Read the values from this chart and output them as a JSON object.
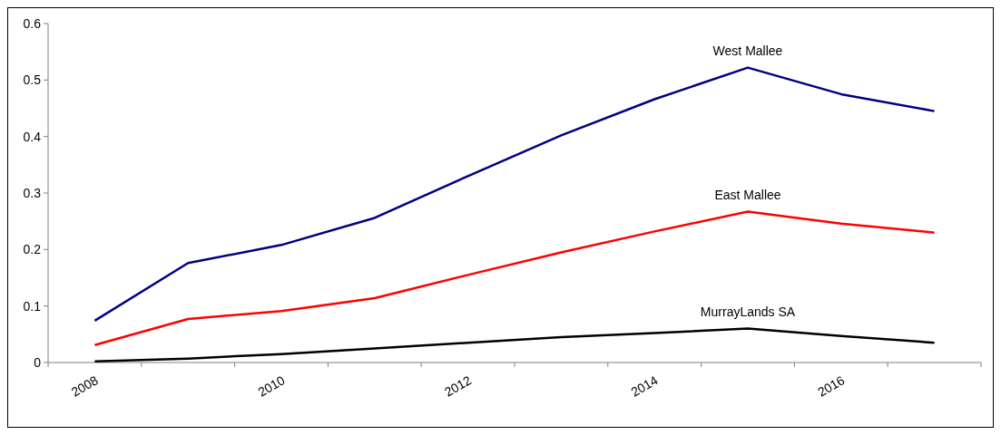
{
  "chart_data": {
    "type": "line",
    "categories": [
      "2008",
      null,
      "2010",
      null,
      "2012",
      null,
      "2014",
      null,
      "2016",
      null
    ],
    "series": [
      {
        "name": "West Mallee",
        "color": "#000080",
        "values": [
          0.074,
          0.176,
          0.208,
          0.256,
          0.33,
          0.402,
          0.466,
          0.522,
          0.475,
          0.445
        ]
      },
      {
        "name": "East Mallee",
        "color": "#ff0000",
        "values": [
          0.031,
          0.077,
          0.091,
          0.114,
          0.155,
          0.195,
          0.232,
          0.267,
          0.246,
          0.23
        ]
      },
      {
        "name": "MurrayLands SA",
        "color": "#000000",
        "values": [
          0.002,
          0.007,
          0.015,
          0.025,
          0.035,
          0.045,
          0.052,
          0.06,
          0.047,
          0.035
        ]
      }
    ],
    "ylim": [
      0,
      0.6
    ],
    "yticks": [
      0,
      0.1,
      0.2,
      0.3,
      0.4,
      0.5,
      0.6
    ],
    "grid": false,
    "marker": "none",
    "line_style": "solid"
  }
}
